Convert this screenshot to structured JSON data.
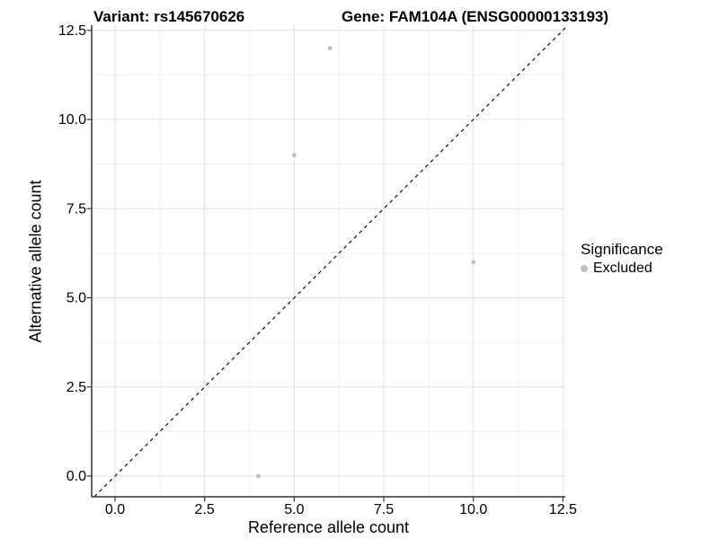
{
  "figure": {
    "title_variant": "Variant: rs145670626",
    "title_gene": "Gene: FAM104A (ENSG00000133193)"
  },
  "chart_data": {
    "type": "scatter",
    "titles": [
      "Variant: rs145670626",
      "Gene: FAM104A (ENSG00000133193)"
    ],
    "xlabel": "Reference allele count",
    "ylabel": "Alternative allele count",
    "x_ticks": {
      "values": [
        0,
        2.5,
        5,
        7.5,
        10,
        12.5
      ],
      "labels": [
        "0.0",
        "2.5",
        "5.0",
        "7.5",
        "10.0",
        "12.5"
      ]
    },
    "y_ticks": {
      "values": [
        0,
        2.5,
        5,
        7.5,
        10,
        12.5
      ],
      "labels": [
        "0.0",
        "2.5",
        "5.0",
        "7.5",
        "10.0",
        "12.5"
      ]
    },
    "xlim": [
      -0.65,
      12.57
    ],
    "ylim": [
      -0.58,
      12.64
    ],
    "grid": {
      "major": true,
      "minor": true
    },
    "reference_line": {
      "type": "identity_y_equals_x",
      "style": "dashed",
      "color": "#111111"
    },
    "series": [
      {
        "name": "Excluded",
        "color": "#bdbdbd",
        "points": [
          {
            "x": 6,
            "y": 12
          },
          {
            "x": 5,
            "y": 9
          },
          {
            "x": 10,
            "y": 6
          },
          {
            "x": 4,
            "y": 0
          }
        ]
      }
    ],
    "legend": {
      "title": "Significance",
      "position": "right",
      "items": [
        {
          "label": "Excluded",
          "color": "#bdbdbd",
          "marker": "circle"
        }
      ]
    }
  },
  "colors": {
    "background": "#ffffff",
    "axis_line": "#333333",
    "grid_major": "#e2e2e2",
    "grid_minor": "#f0f0f0",
    "text": "#000000",
    "point": "#bdbdbd"
  }
}
